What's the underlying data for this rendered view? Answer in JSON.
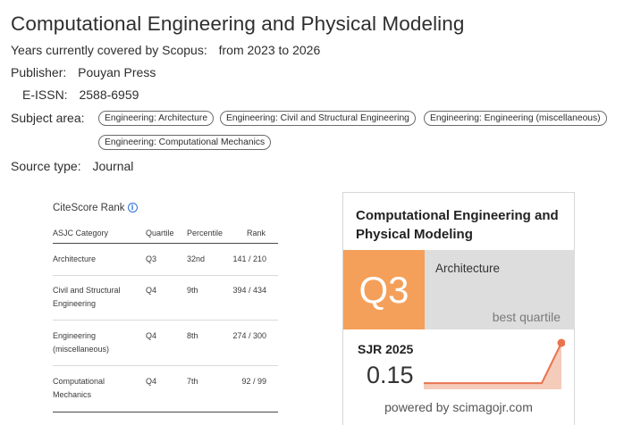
{
  "journal": {
    "title": "Computational Engineering and Physical Modeling",
    "coverage_label": "Years currently covered by Scopus:",
    "coverage_value": "from 2023 to 2026",
    "publisher_label": "Publisher:",
    "publisher_value": "Pouyan Press",
    "eissn_label": "E-ISSN:",
    "eissn_value": "2588-6959",
    "subject_label": "Subject area:",
    "subjects": [
      "Engineering: Architecture",
      "Engineering: Civil and Structural Engineering",
      "Engineering: Engineering (miscellaneous)",
      "Engineering: Computational Mechanics"
    ],
    "source_type_label": "Source type:",
    "source_type_value": "Journal"
  },
  "citescore": {
    "title": "CiteScore Rank",
    "headers": [
      "ASJC Category",
      "Quartile",
      "Percentile",
      "Rank"
    ],
    "rows": [
      {
        "category_line1": "Architecture",
        "category_line2": "",
        "quartile": "Q3",
        "percentile": "32nd",
        "rank": "141 / 210"
      },
      {
        "category_line1": "Civil and Structural",
        "category_line2": "Engineering",
        "quartile": "Q4",
        "percentile": "9th",
        "rank": "394 / 434"
      },
      {
        "category_line1": "Engineering",
        "category_line2": "(miscellaneous)",
        "quartile": "Q4",
        "percentile": "8th",
        "rank": "274 / 300"
      },
      {
        "category_line1": "Computational",
        "category_line2": "Mechanics",
        "quartile": "Q4",
        "percentile": "7th",
        "rank": "92 / 99"
      }
    ]
  },
  "sjr_widget": {
    "title": "Computational Engineering and Physical Modeling",
    "quartile": "Q3",
    "category": "Architecture",
    "best_quartile_label": "best quartile",
    "sjr_label": "SJR 2025",
    "sjr_value": "0.15",
    "powered_by": "powered by scimagojr.com",
    "colors": {
      "quartile_bg": "#f4a05a",
      "category_bg": "#dddddd",
      "sparkline": "#e8734f"
    },
    "sparkline": {
      "type": "line",
      "values": [
        0.02,
        0.02,
        0.15
      ]
    }
  }
}
